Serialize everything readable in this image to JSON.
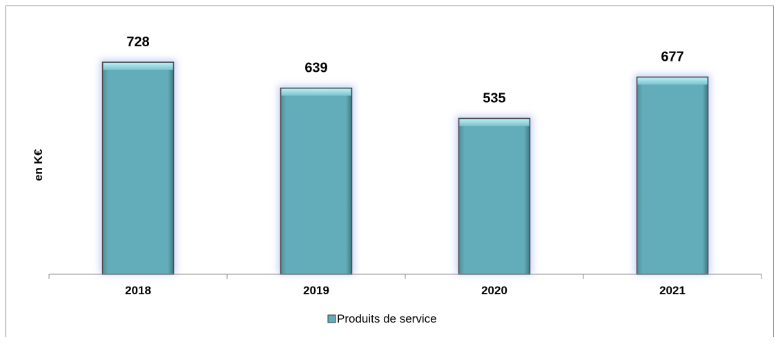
{
  "chart_data": {
    "type": "bar",
    "categories": [
      "2018",
      "2019",
      "2020",
      "2021"
    ],
    "series": [
      {
        "name": "Produits de service",
        "values": [
          728,
          639,
          535,
          677
        ]
      }
    ],
    "title": "",
    "xlabel": "",
    "ylabel": "en K€",
    "ylim": [
      0,
      800
    ],
    "grid": false,
    "legend": "bottom-center",
    "data_labels": [
      "728",
      "639",
      "535",
      "677"
    ],
    "colors": {
      "bar_fill": "#62adb9",
      "bar_top": "#8fd6e0",
      "bar_edge": "#4a4a4a"
    }
  }
}
